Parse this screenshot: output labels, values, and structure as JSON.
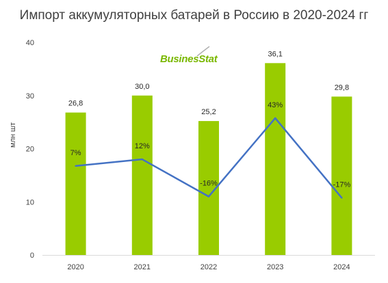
{
  "chart_data": {
    "type": "bar",
    "title": "Импорт аккумуляторных батарей в Россию в 2020-2024 гг",
    "ylabel": "млн  шт",
    "ylim": [
      0,
      40
    ],
    "yticks": [
      0,
      10,
      20,
      30,
      40
    ],
    "categories": [
      "2020",
      "2021",
      "2022",
      "2023",
      "2024"
    ],
    "series": [
      {
        "type": "bar",
        "values": [
          26.8,
          30.0,
          25.2,
          36.1,
          29.8
        ],
        "labels": [
          "26,8",
          "30,0",
          "25,2",
          "36,1",
          "29,8"
        ],
        "color": "#99cc00"
      },
      {
        "type": "line",
        "values": [
          7,
          12,
          -16,
          43,
          -17
        ],
        "labels": [
          "7%",
          "12%",
          "-16%",
          "43%",
          "-17%"
        ],
        "color": "#4472c4"
      }
    ],
    "grid": false,
    "legend": "none"
  },
  "watermark": {
    "text": "BusinesStat",
    "color": "#7ab800"
  }
}
